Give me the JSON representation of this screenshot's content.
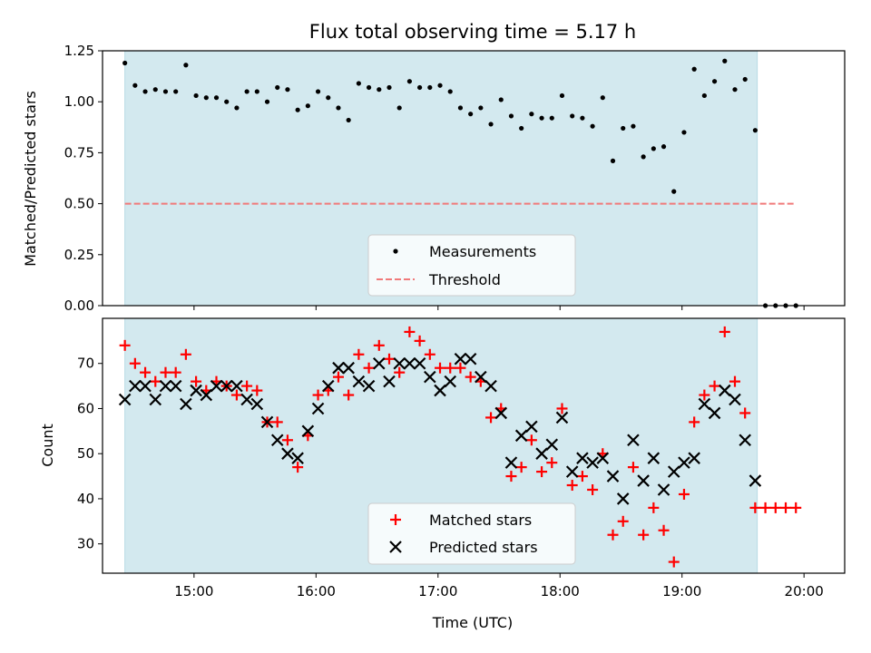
{
  "chart_data": [
    {
      "type": "scatter",
      "title": "Flux total observing time = 5.17 h",
      "xlabel": "",
      "ylabel": "Matched/Predicted stars",
      "xlim": [
        "14:15",
        "20:20"
      ],
      "ylim": [
        0,
        1.25
      ],
      "yticks": [
        "0.00",
        "0.25",
        "0.50",
        "0.75",
        "1.00",
        "1.25"
      ],
      "shaded_interval": {
        "start": "14:26",
        "end": "19:37",
        "color": "#d3e9ef"
      },
      "series": [
        {
          "name": "Measurements",
          "marker": "dot",
          "color": "#000000",
          "x": [
            "14:26",
            "14:31",
            "14:36",
            "14:41",
            "14:46",
            "14:51",
            "14:56",
            "15:01",
            "15:06",
            "15:11",
            "15:16",
            "15:21",
            "15:26",
            "15:31",
            "15:36",
            "15:41",
            "15:46",
            "15:51",
            "15:56",
            "16:01",
            "16:06",
            "16:11",
            "16:16",
            "16:21",
            "16:26",
            "16:31",
            "16:36",
            "16:41",
            "16:46",
            "16:51",
            "16:56",
            "17:01",
            "17:06",
            "17:11",
            "17:16",
            "17:21",
            "17:26",
            "17:31",
            "17:36",
            "17:41",
            "17:46",
            "17:51",
            "17:56",
            "18:01",
            "18:06",
            "18:11",
            "18:16",
            "18:21",
            "18:26",
            "18:31",
            "18:36",
            "18:41",
            "18:46",
            "18:51",
            "18:56",
            "19:01",
            "19:06",
            "19:11",
            "19:16",
            "19:21",
            "19:26",
            "19:31",
            "19:36",
            "19:41",
            "19:46",
            "19:51",
            "19:56"
          ],
          "y": [
            1.19,
            1.08,
            1.05,
            1.06,
            1.05,
            1.05,
            1.18,
            1.03,
            1.02,
            1.02,
            1.0,
            0.97,
            1.05,
            1.05,
            1.0,
            1.07,
            1.06,
            0.96,
            0.98,
            1.05,
            1.02,
            0.97,
            0.91,
            1.09,
            1.07,
            1.06,
            1.07,
            0.97,
            1.1,
            1.07,
            1.07,
            1.08,
            1.05,
            0.97,
            0.94,
            0.97,
            0.89,
            1.01,
            0.93,
            0.87,
            0.94,
            0.92,
            0.92,
            1.03,
            0.93,
            0.92,
            0.88,
            1.02,
            0.71,
            0.87,
            0.88,
            0.73,
            0.77,
            0.78,
            0.56,
            0.85,
            1.16,
            1.03,
            1.1,
            1.2,
            1.06,
            1.11,
            0.86,
            0.0,
            0.0,
            0.0,
            0.0
          ]
        },
        {
          "name": "Threshold",
          "type": "line",
          "style": "dashed",
          "color": "#f07a7a",
          "x": [
            "14:26",
            "19:56"
          ],
          "y": [
            0.5,
            0.5
          ]
        }
      ],
      "legend": "lower-center"
    },
    {
      "type": "scatter",
      "title": "",
      "xlabel": "Time (UTC)",
      "ylabel": "Count",
      "xlim": [
        "14:15",
        "20:20"
      ],
      "ylim": [
        23.5,
        80
      ],
      "xticks": [
        "15:00",
        "16:00",
        "17:00",
        "18:00",
        "19:00",
        "20:00"
      ],
      "yticks": [
        "30",
        "40",
        "50",
        "60",
        "70"
      ],
      "shaded_interval": {
        "start": "14:26",
        "end": "19:37",
        "color": "#d3e9ef"
      },
      "series": [
        {
          "name": "Matched stars",
          "marker": "plus",
          "color": "#ff0000",
          "x": [
            "14:26",
            "14:31",
            "14:36",
            "14:41",
            "14:46",
            "14:51",
            "14:56",
            "15:01",
            "15:06",
            "15:11",
            "15:16",
            "15:21",
            "15:26",
            "15:31",
            "15:36",
            "15:41",
            "15:46",
            "15:51",
            "15:56",
            "16:01",
            "16:06",
            "16:11",
            "16:16",
            "16:21",
            "16:26",
            "16:31",
            "16:36",
            "16:41",
            "16:46",
            "16:51",
            "16:56",
            "17:01",
            "17:06",
            "17:11",
            "17:16",
            "17:21",
            "17:26",
            "17:31",
            "17:36",
            "17:41",
            "17:46",
            "17:51",
            "17:56",
            "18:01",
            "18:06",
            "18:11",
            "18:16",
            "18:21",
            "18:26",
            "18:31",
            "18:36",
            "18:41",
            "18:46",
            "18:51",
            "18:56",
            "19:01",
            "19:06",
            "19:11",
            "19:16",
            "19:21",
            "19:26",
            "19:31",
            "19:36",
            "19:41",
            "19:46",
            "19:51",
            "19:56"
          ],
          "y": [
            74,
            70,
            68,
            66,
            68,
            68,
            72,
            66,
            64,
            66,
            65,
            63,
            65,
            64,
            57,
            57,
            53,
            47,
            54,
            63,
            64,
            67,
            63,
            72,
            69,
            74,
            71,
            68,
            77,
            75,
            72,
            69,
            69,
            69,
            67,
            66,
            58,
            60,
            45,
            47,
            53,
            46,
            48,
            60,
            43,
            45,
            42,
            50,
            32,
            35,
            47,
            32,
            38,
            33,
            26,
            41,
            57,
            63,
            65,
            77,
            66,
            59,
            38,
            38,
            38,
            38,
            38
          ]
        },
        {
          "name": "Predicted stars",
          "marker": "x",
          "color": "#000000",
          "x": [
            "14:26",
            "14:31",
            "14:36",
            "14:41",
            "14:46",
            "14:51",
            "14:56",
            "15:01",
            "15:06",
            "15:11",
            "15:16",
            "15:21",
            "15:26",
            "15:31",
            "15:36",
            "15:41",
            "15:46",
            "15:51",
            "15:56",
            "16:01",
            "16:06",
            "16:11",
            "16:16",
            "16:21",
            "16:26",
            "16:31",
            "16:36",
            "16:41",
            "16:46",
            "16:51",
            "16:56",
            "17:01",
            "17:06",
            "17:11",
            "17:16",
            "17:21",
            "17:26",
            "17:31",
            "17:36",
            "17:41",
            "17:46",
            "17:51",
            "17:56",
            "18:01",
            "18:06",
            "18:11",
            "18:16",
            "18:21",
            "18:26",
            "18:31",
            "18:36",
            "18:41",
            "18:46",
            "18:51",
            "18:56",
            "19:01",
            "19:06",
            "19:11",
            "19:16",
            "19:21",
            "19:26",
            "19:31",
            "19:36"
          ],
          "y": [
            62,
            65,
            65,
            62,
            65,
            65,
            61,
            64,
            63,
            65,
            65,
            65,
            62,
            61,
            57,
            53,
            50,
            49,
            55,
            60,
            65,
            69,
            69,
            66,
            65,
            70,
            66,
            70,
            70,
            70,
            67,
            64,
            66,
            71,
            71,
            67,
            65,
            59,
            48,
            54,
            56,
            50,
            52,
            58,
            46,
            49,
            48,
            49,
            45,
            40,
            53,
            44,
            49,
            42,
            46,
            48,
            49,
            61,
            59,
            64,
            62,
            53,
            44
          ]
        }
      ],
      "legend": "lower-center"
    }
  ]
}
